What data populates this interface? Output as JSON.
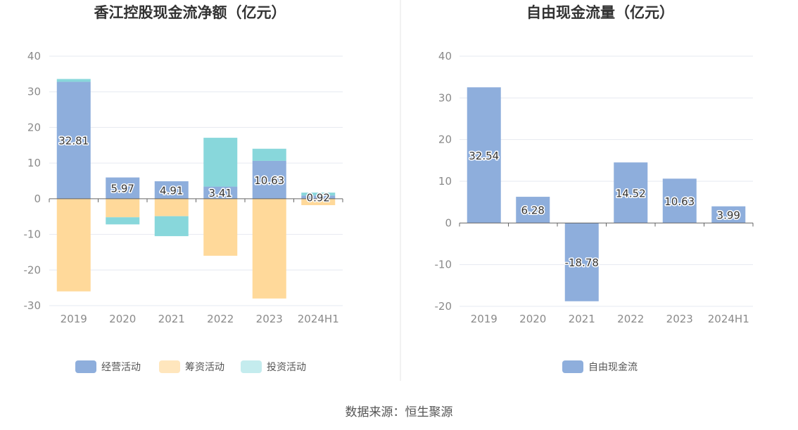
{
  "colors": {
    "operating": "#8eaedc",
    "financing": "#ffd99a",
    "investing": "#88d7db",
    "legend_financing": "#ffe6bd",
    "legend_investing": "#c4ecee",
    "fcf": "#8eaedc"
  },
  "chart_data": [
    {
      "type": "bar",
      "stacked": true,
      "title": "香江控股现金流净额（亿元）",
      "categories": [
        "2019",
        "2020",
        "2021",
        "2022",
        "2023",
        "2024H1"
      ],
      "ylim": [
        -30,
        40
      ],
      "yticks": [
        40,
        30,
        20,
        10,
        0,
        -10,
        -20,
        -30
      ],
      "grid": true,
      "legend_position": "bottom",
      "series": [
        {
          "name": "经营活动",
          "color_key": "operating",
          "values": [
            32.81,
            5.97,
            4.91,
            3.41,
            10.63,
            0.92
          ],
          "labels": [
            "32.81",
            "5.97",
            "4.91",
            "3.41",
            "10.63",
            "0.92"
          ]
        },
        {
          "name": "筹资活动",
          "color_key": "financing",
          "legend_color_key": "legend_financing",
          "values": [
            -26.0,
            -5.2,
            -4.9,
            -16.0,
            -28.0,
            -1.8
          ]
        },
        {
          "name": "投资活动",
          "color_key": "investing",
          "legend_color_key": "legend_investing",
          "values": [
            0.8,
            -2.0,
            -5.6,
            13.7,
            3.4,
            0.8
          ]
        }
      ]
    },
    {
      "type": "bar",
      "title": "自由现金流量（亿元）",
      "categories": [
        "2019",
        "2020",
        "2021",
        "2022",
        "2023",
        "2024H1"
      ],
      "ylim": [
        -20,
        40
      ],
      "yticks": [
        40,
        30,
        20,
        10,
        0,
        -10,
        -20
      ],
      "grid": true,
      "legend_position": "bottom",
      "series": [
        {
          "name": "自由现金流",
          "color_key": "fcf",
          "values": [
            32.54,
            6.28,
            -18.78,
            14.52,
            10.63,
            3.99
          ],
          "labels": [
            "32.54",
            "6.28",
            "-18.78",
            "14.52",
            "10.63",
            "3.99"
          ]
        }
      ]
    }
  ],
  "source_text": "数据来源：恒生聚源"
}
